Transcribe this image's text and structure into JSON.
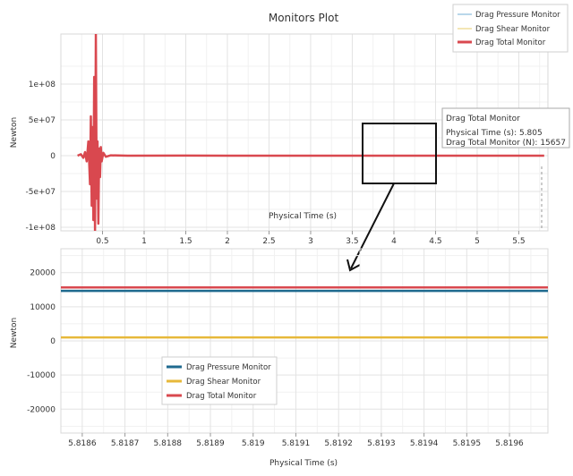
{
  "chart_data": [
    {
      "type": "line",
      "title": "Monitors Plot",
      "xlabel": "Physical Time (s)",
      "ylabel": "Newton",
      "xlim": [
        0.0,
        5.85
      ],
      "ylim": [
        -105000000,
        170000000
      ],
      "x_ticks": [
        0.5,
        1,
        1.5,
        2,
        2.5,
        3,
        3.5,
        4,
        4.5,
        5,
        5.5
      ],
      "x_tick_labels": [
        "0.5",
        "1",
        "1.5",
        "2",
        "2.5",
        "3",
        "3.5",
        "4",
        "4.5",
        "5",
        "5.5"
      ],
      "y_ticks": [
        -100000000,
        -50000000,
        0,
        50000000,
        100000000
      ],
      "y_tick_labels": [
        "-1e+08",
        "-5e+07",
        "0",
        "5e+07",
        "1e+08"
      ],
      "grid": true,
      "legend": {
        "placement": "top-right",
        "entries": [
          "Drag Pressure Monitor",
          "Drag Shear Monitor",
          "Drag Total Monitor"
        ]
      },
      "series": [
        {
          "name": "Drag Total Monitor",
          "color": "#d9484f",
          "x": [
            0.2,
            0.24,
            0.27,
            0.29,
            0.31,
            0.33,
            0.35,
            0.36,
            0.37,
            0.38,
            0.39,
            0.4,
            0.41,
            0.42,
            0.43,
            0.44,
            0.45,
            0.46,
            0.47,
            0.48,
            0.49,
            0.51,
            0.54,
            0.6,
            0.8,
            1.5,
            3.0,
            4.5,
            5.805
          ],
          "y": [
            0,
            2000000,
            -3000000,
            5000000,
            -8000000,
            20000000,
            -40000000,
            55000000,
            -70000000,
            40000000,
            -90000000,
            110000000,
            -105000000,
            170000000,
            -60000000,
            20000000,
            -95000000,
            10000000,
            -30000000,
            12000000,
            -8000000,
            4000000,
            -1500000,
            500000,
            0,
            100000,
            0,
            20000,
            15657
          ]
        }
      ],
      "tooltip": {
        "title": "Drag Total Monitor",
        "line1": "Physical Time (s): 5.805",
        "line2": "Drag Total Monitor (N): 15657"
      }
    },
    {
      "type": "line",
      "xlabel": "Physical Time (s)",
      "ylabel": "Newton",
      "xlim": [
        5.81855,
        5.81969
      ],
      "ylim": [
        -27000,
        27000
      ],
      "x_ticks": [
        5.8186,
        5.8187,
        5.8188,
        5.8189,
        5.819,
        5.8191,
        5.8192,
        5.8193,
        5.8194,
        5.8195,
        5.8196
      ],
      "x_tick_labels": [
        "5.8186",
        "5.8187",
        "5.8188",
        "5.8189",
        "5.819",
        "5.8191",
        "5.8192",
        "5.8193",
        "5.8194",
        "5.8195",
        "5.8196"
      ],
      "y_ticks": [
        -20000,
        -10000,
        0,
        10000,
        20000
      ],
      "y_tick_labels": [
        "-20000",
        "-10000",
        "0",
        "10000",
        "20000"
      ],
      "grid": true,
      "legend": {
        "placement": "bottom-left",
        "entries": [
          "Drag Pressure Monitor",
          "Drag Shear Monitor",
          "Drag Total Monitor"
        ]
      },
      "series": [
        {
          "name": "Drag Pressure Monitor",
          "color": "#1f6a8f",
          "x": [
            5.81855,
            5.81969
          ],
          "y": [
            14650,
            14650
          ]
        },
        {
          "name": "Drag Shear Monitor",
          "color": "#e7b83a",
          "x": [
            5.81855,
            5.81969
          ],
          "y": [
            1007,
            1007
          ]
        },
        {
          "name": "Drag Total Monitor",
          "color": "#d9484f",
          "x": [
            5.81855,
            5.81969
          ],
          "y": [
            15657,
            15657
          ]
        }
      ]
    }
  ]
}
